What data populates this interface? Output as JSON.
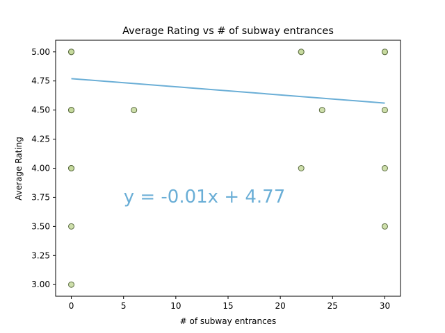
{
  "chart_data": {
    "type": "scatter",
    "title": "Average Rating vs # of subway entrances",
    "xlabel": "# of  subway entrances",
    "ylabel": "Average Rating",
    "xlim": [
      -1.5,
      31.5
    ],
    "ylim": [
      2.9,
      5.1
    ],
    "xticks": [
      0,
      5,
      10,
      15,
      20,
      25,
      30
    ],
    "yticks": [
      3.0,
      3.25,
      3.5,
      3.75,
      4.0,
      4.25,
      4.5,
      4.75,
      5.0
    ],
    "xtick_labels": [
      "0",
      "5",
      "10",
      "15",
      "20",
      "25",
      "30"
    ],
    "ytick_labels": [
      "3.00",
      "3.25",
      "3.50",
      "3.75",
      "4.00",
      "4.25",
      "4.50",
      "4.75",
      "5.00"
    ],
    "grid": false,
    "series": [
      {
        "kind": "points",
        "marker_fill": "#c5d99c",
        "marker_edge": "#5a6b40",
        "points": [
          {
            "x": 0,
            "y": 5.0
          },
          {
            "x": 0,
            "y": 5.0
          },
          {
            "x": 0,
            "y": 5.0
          },
          {
            "x": 0,
            "y": 4.5
          },
          {
            "x": 0,
            "y": 4.5
          },
          {
            "x": 0,
            "y": 4.5
          },
          {
            "x": 0,
            "y": 4.0
          },
          {
            "x": 0,
            "y": 4.0
          },
          {
            "x": 0,
            "y": 4.0
          },
          {
            "x": 0,
            "y": 3.5
          },
          {
            "x": 0,
            "y": 3.0
          },
          {
            "x": 6,
            "y": 4.5
          },
          {
            "x": 22,
            "y": 5.0
          },
          {
            "x": 22,
            "y": 5.0
          },
          {
            "x": 22,
            "y": 4.0
          },
          {
            "x": 24,
            "y": 4.5
          },
          {
            "x": 30,
            "y": 5.0
          },
          {
            "x": 30,
            "y": 5.0
          },
          {
            "x": 30,
            "y": 4.5
          },
          {
            "x": 30,
            "y": 4.0
          },
          {
            "x": 30,
            "y": 3.5
          }
        ]
      },
      {
        "kind": "regression-line",
        "color": "#6aaed6",
        "slope": -0.007,
        "intercept": 4.77,
        "x_range": [
          0,
          30
        ]
      }
    ],
    "annotations": [
      {
        "text": "y = -0.01x + 4.77",
        "x": 5,
        "y": 3.76,
        "color": "#6aaed6"
      }
    ]
  }
}
